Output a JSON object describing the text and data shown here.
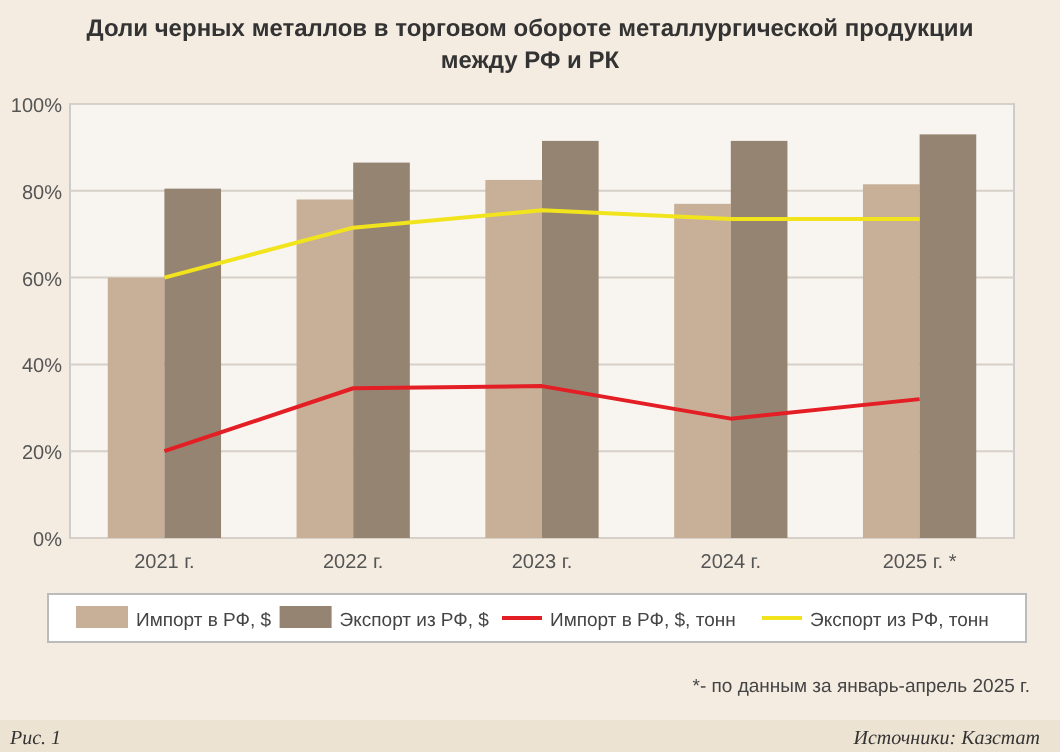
{
  "chart_data": {
    "type": "bar",
    "title": "Доли черных металлов в торговом обороте металлургической продукции между РФ и РК",
    "categories": [
      "2021 г.",
      "2022 г.",
      "2023 г.",
      "2024 г.",
      "2025 г. *"
    ],
    "series": [
      {
        "name": "Импорт в РФ, $",
        "color": "#c8b098",
        "values": [
          60,
          78,
          82.5,
          77,
          81.5
        ]
      },
      {
        "name": "Экспорт из РФ, $",
        "color": "#968473",
        "values": [
          80.5,
          86.5,
          91.5,
          91.5,
          93
        ]
      },
      {
        "name": "Импорт в РФ, $, тонн",
        "type": "line",
        "color": "#e31e24",
        "values": [
          20,
          34.5,
          35,
          27.5,
          32
        ]
      },
      {
        "name": "Экспорт из РФ, тонн",
        "type": "line",
        "color": "#f2e41c",
        "values": [
          60,
          71.5,
          75.5,
          73.5,
          73.5
        ]
      }
    ],
    "ylim": [
      0,
      100
    ],
    "yticks": [
      {
        "value": 0,
        "label": "0%"
      },
      {
        "value": 20,
        "label": "20%"
      },
      {
        "value": 40,
        "label": "40%"
      },
      {
        "value": 60,
        "label": "60%"
      },
      {
        "value": 80,
        "label": "80%"
      },
      {
        "value": 100,
        "label": "100%"
      }
    ],
    "grid": "y",
    "legend": "bottom",
    "marker": "none",
    "line_style": "solid",
    "annotations": [
      "*- по данным за январь-апрель 2025 г.",
      "Рис. 1",
      "Источники: Казстат"
    ]
  }
}
